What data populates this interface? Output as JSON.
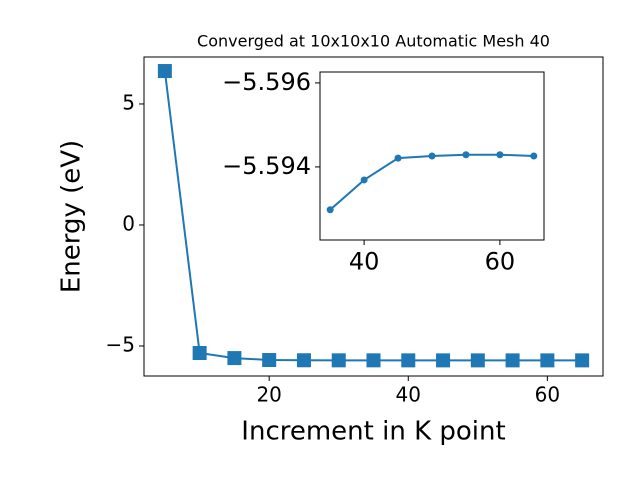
{
  "chart_data": [
    {
      "type": "line",
      "title": "Converged at 10x10x10 Automatic Mesh 40",
      "x_label": "Increment in K point",
      "y_label": "Energy (eV)",
      "x": [
        5,
        10,
        15,
        20,
        25,
        30,
        35,
        40,
        45,
        50,
        55,
        60,
        65
      ],
      "series": [
        {
          "color": "#1f77b4",
          "marker": "square",
          "values": [
            6.36,
            -5.29,
            -5.5,
            -5.58,
            -5.59,
            -5.593,
            -5.593,
            -5.5937,
            -5.5942,
            -5.5943,
            -5.5943,
            -5.5943,
            -5.5943
          ]
        }
      ],
      "xlim": [
        2,
        68
      ],
      "ylim": [
        -6.24,
        6.94
      ],
      "xticks": [
        20,
        40,
        60
      ],
      "yticks": [
        {
          "value": -5,
          "label": "−5"
        },
        0,
        5
      ]
    },
    {
      "type": "line",
      "x": [
        35,
        40,
        45,
        50,
        55,
        60,
        65
      ],
      "series": [
        {
          "color": "#1f77b4",
          "marker": "circle",
          "values": [
            -5.59298,
            -5.59369,
            -5.59421,
            -5.59426,
            -5.59429,
            -5.59429,
            -5.59426
          ]
        }
      ],
      "xlim": [
        33.5,
        66.5
      ],
      "ylim": [
        -5.59226,
        -5.59626
      ],
      "xticks": [
        40,
        60
      ],
      "yticks": [
        {
          "value": -5.596,
          "label": "−5.596"
        },
        {
          "value": -5.594,
          "label": "−5.594"
        }
      ]
    }
  ]
}
